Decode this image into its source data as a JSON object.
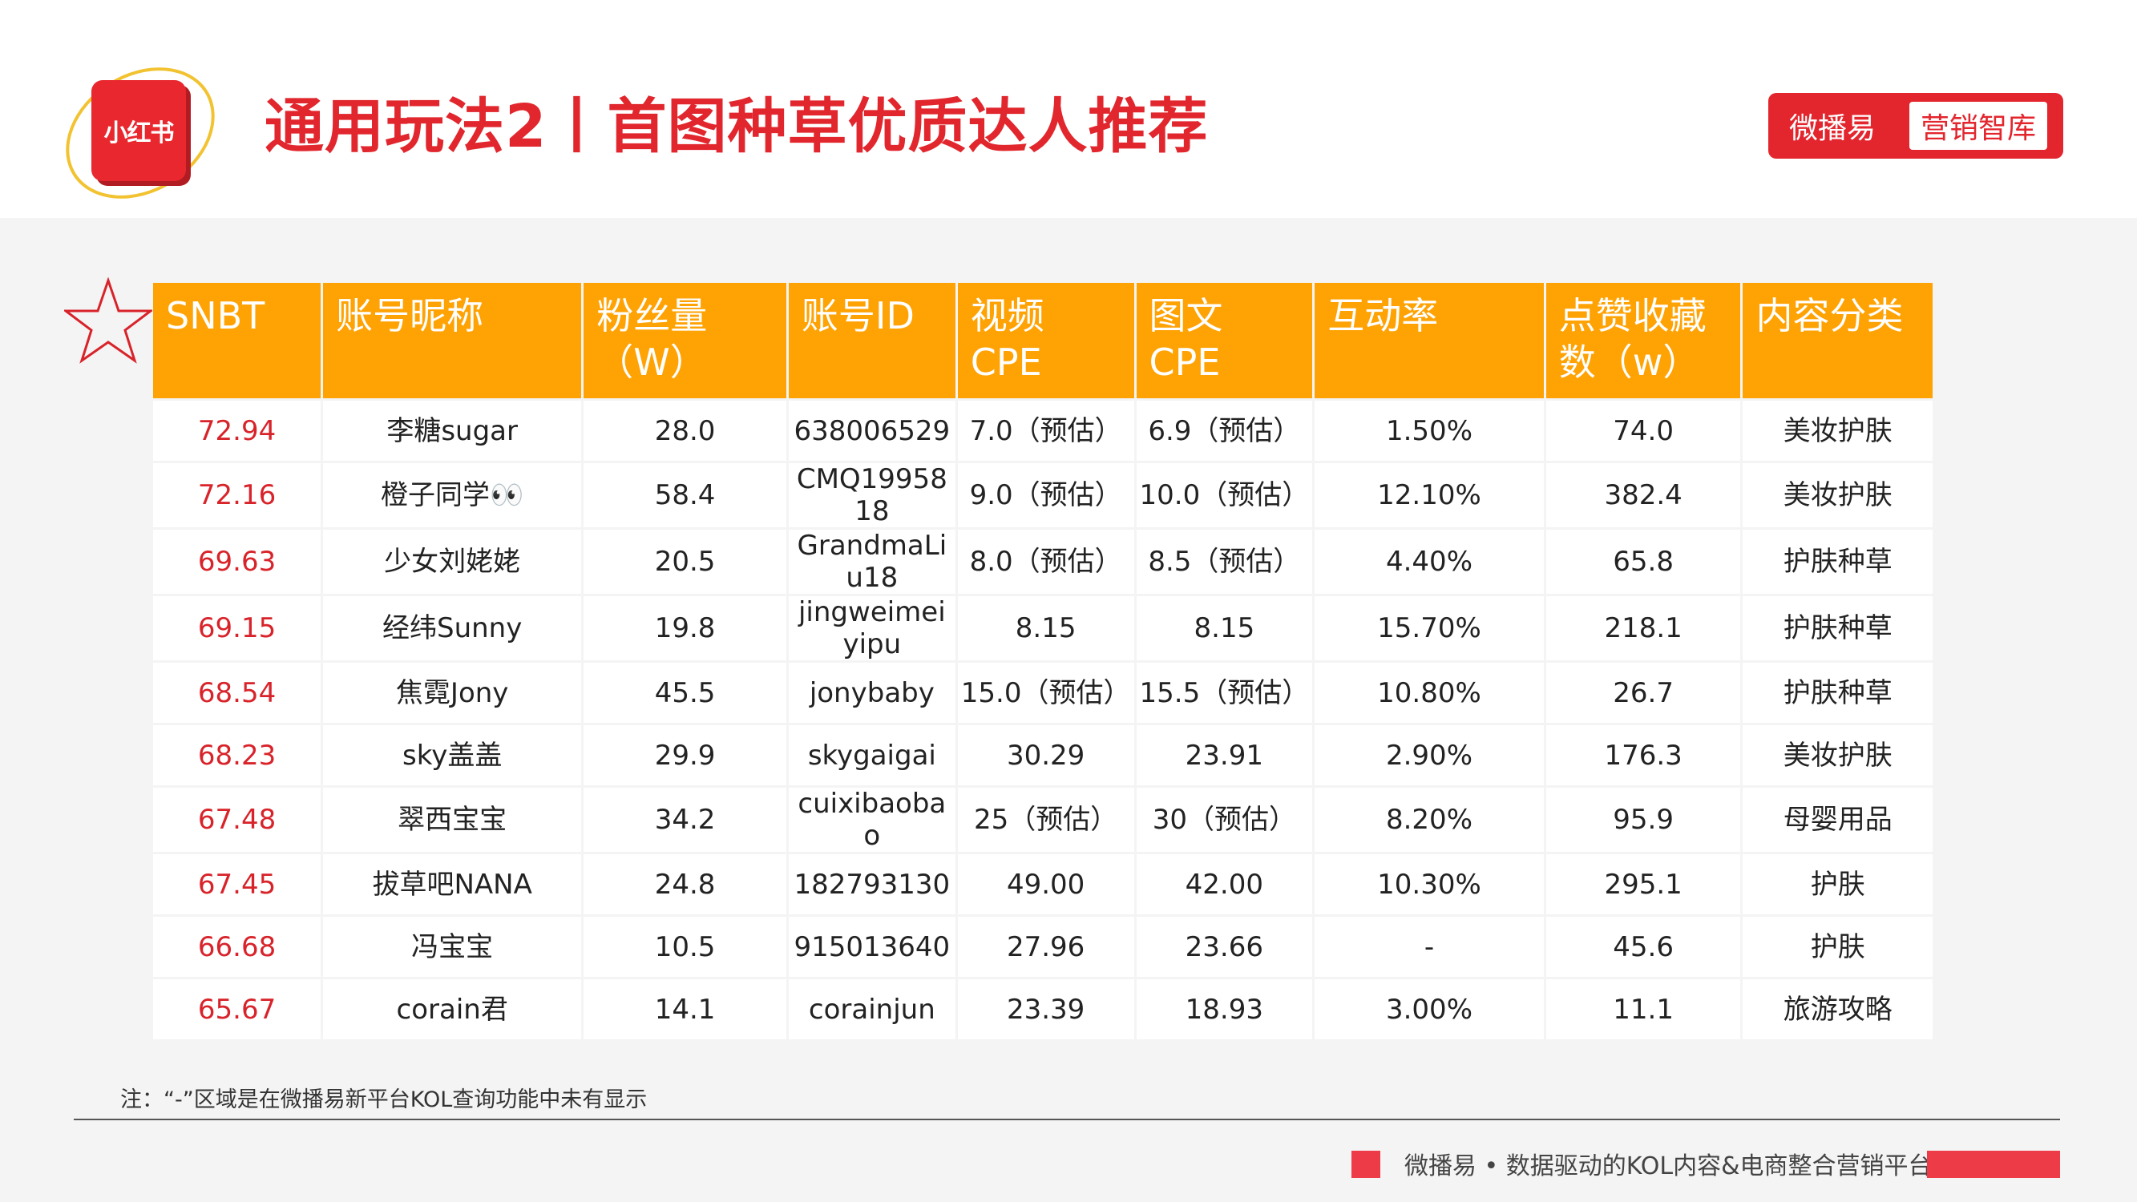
{
  "header": {
    "logo_text": "小红书",
    "title": "通用玩法2丨首图种草优质达人推荐",
    "brand_name": "微播易",
    "brand_sub": "营销智库"
  },
  "table": {
    "columns": [
      "SNBT",
      "账号昵称",
      "粉丝量（W）",
      "账号ID",
      "视频 CPE",
      "图文 CPE",
      "互动率",
      "点赞收藏数（w）",
      "内容分类"
    ],
    "rows": [
      [
        "72.94",
        "李糖sugar",
        "28.0",
        "638006529",
        "7.0（预估）",
        "6.9（预估）",
        "1.50%",
        "74.0",
        "美妆护肤"
      ],
      [
        "72.16",
        "橙子同学👀",
        "58.4",
        "CMQ1995818",
        "9.0（预估）",
        "10.0（预估）",
        "12.10%",
        "382.4",
        "美妆护肤"
      ],
      [
        "69.63",
        "少女刘姥姥",
        "20.5",
        "GrandmaLiu18",
        "8.0（预估）",
        "8.5（预估）",
        "4.40%",
        "65.8",
        "护肤种草"
      ],
      [
        "69.15",
        "经纬Sunny",
        "19.8",
        "jingweimeiyipu",
        "8.15",
        "8.15",
        "15.70%",
        "218.1",
        "护肤种草"
      ],
      [
        "68.54",
        "焦霓Jony",
        "45.5",
        "jonybaby",
        "15.0（预估）",
        "15.5（预估）",
        "10.80%",
        "26.7",
        "护肤种草"
      ],
      [
        "68.23",
        "sky盖盖",
        "29.9",
        "skygaigai",
        "30.29",
        "23.91",
        "2.90%",
        "176.3",
        "美妆护肤"
      ],
      [
        "67.48",
        "翠西宝宝",
        "34.2",
        "cuixibaobao",
        "25（预估）",
        "30（预估）",
        "8.20%",
        "95.9",
        "母婴用品"
      ],
      [
        "67.45",
        "拔草吧NANA",
        "24.8",
        "182793130",
        "49.00",
        "42.00",
        "10.30%",
        "295.1",
        "护肤"
      ],
      [
        "66.68",
        "冯宝宝",
        "10.5",
        "915013640",
        "27.96",
        "23.66",
        "-",
        "45.6",
        "护肤"
      ],
      [
        "65.67",
        "corain君",
        "14.1",
        "corainjun",
        "23.39",
        "18.93",
        "3.00%",
        "11.1",
        "旅游攻略"
      ]
    ]
  },
  "note": "注：“-”区域是在微播易新平台KOL查询功能中未有显示",
  "footer": "微播易 • 数据驱动的KOL内容&电商整合营销平台",
  "colors": {
    "brand_red": "#e1262d",
    "header_orange": "#ffa203",
    "score_red": "#d8232a"
  },
  "icons": [
    "star-icon"
  ]
}
